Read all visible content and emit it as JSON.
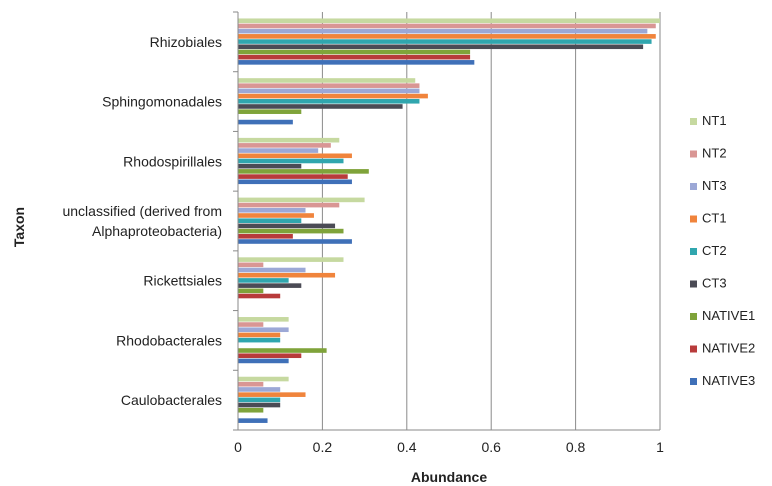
{
  "chart_data": {
    "type": "bar",
    "orientation": "horizontal",
    "title": "",
    "xlabel": "Abundance",
    "ylabel": "Taxon",
    "xlim": [
      0,
      1
    ],
    "xticks": [
      "0",
      "0.2",
      "0.4",
      "0.6",
      "0.8",
      "1"
    ],
    "grid": "vertical",
    "legend_position": "right",
    "categories": [
      [
        "Rhizobiales"
      ],
      [
        "Sphingomonadales"
      ],
      [
        "Rhodospirillales"
      ],
      [
        "unclassified (derived from",
        "Alphaproteobacteria)"
      ],
      [
        "Rickettsiales"
      ],
      [
        "Rhodobacterales"
      ],
      [
        "Caulobacterales"
      ]
    ],
    "series": [
      {
        "name": "NT1",
        "color": "#C6D9A0",
        "values": [
          1.0,
          0.42,
          0.24,
          0.3,
          0.25,
          0.12,
          0.12
        ]
      },
      {
        "name": "NT2",
        "color": "#D99694",
        "values": [
          0.99,
          0.43,
          0.22,
          0.24,
          0.06,
          0.06,
          0.06
        ]
      },
      {
        "name": "NT3",
        "color": "#9CA8D6",
        "values": [
          0.97,
          0.43,
          0.19,
          0.16,
          0.16,
          0.12,
          0.1
        ]
      },
      {
        "name": "CT1",
        "color": "#F0843C",
        "values": [
          0.99,
          0.45,
          0.27,
          0.18,
          0.23,
          0.1,
          0.16
        ]
      },
      {
        "name": "CT2",
        "color": "#30A6AE",
        "values": [
          0.98,
          0.43,
          0.25,
          0.15,
          0.12,
          0.1,
          0.1
        ]
      },
      {
        "name": "CT3",
        "color": "#4B4B55",
        "values": [
          0.96,
          0.39,
          0.15,
          0.23,
          0.15,
          0.0,
          0.1
        ]
      },
      {
        "name": "NATIVE1",
        "color": "#7FA33A",
        "values": [
          0.55,
          0.15,
          0.31,
          0.25,
          0.06,
          0.21,
          0.06
        ]
      },
      {
        "name": "NATIVE2",
        "color": "#B83B3B",
        "values": [
          0.55,
          0.0,
          0.26,
          0.13,
          0.1,
          0.15,
          0.0
        ]
      },
      {
        "name": "NATIVE3",
        "color": "#3F70B8",
        "values": [
          0.56,
          0.13,
          0.27,
          0.27,
          0.0,
          0.12,
          0.07
        ]
      }
    ]
  }
}
